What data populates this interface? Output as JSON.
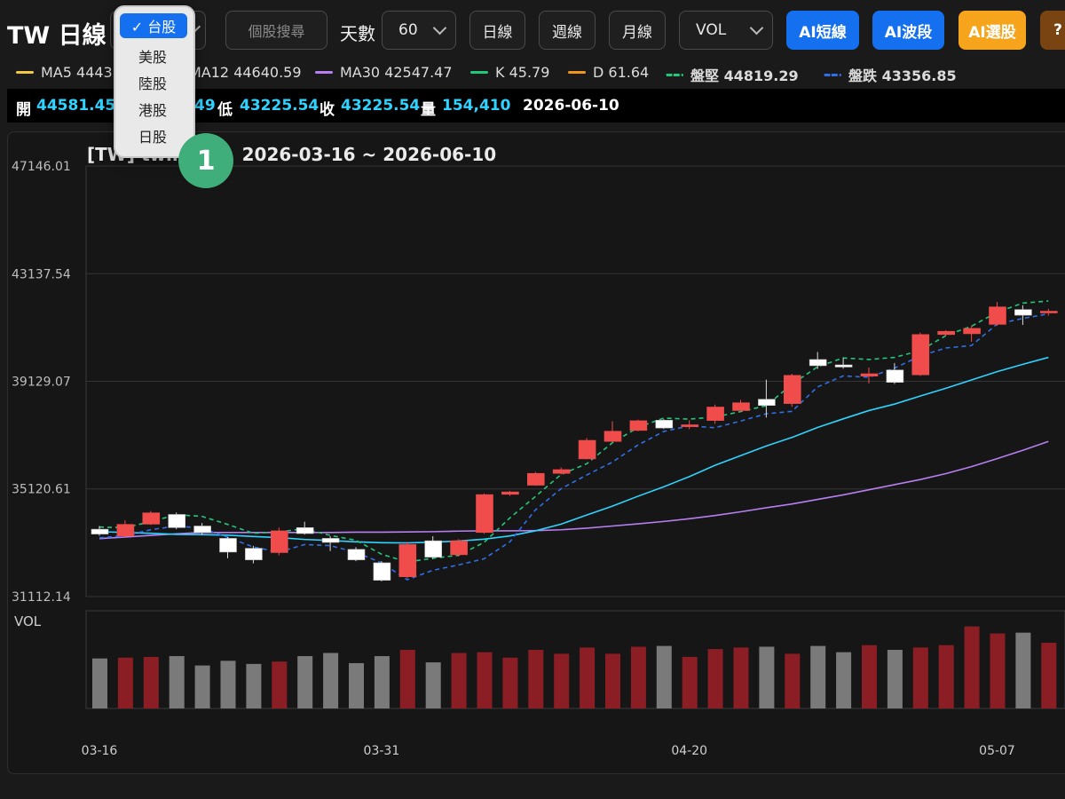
{
  "header": {
    "title": "TW 日線",
    "market_select": {
      "selected": "台股",
      "options": [
        "✓ 台股",
        "美股",
        "陸股",
        "港股",
        "日股"
      ]
    },
    "search_placeholder": "個股搜尋",
    "days_label": "天數",
    "days_value": "60",
    "daily_button": "日線",
    "weekly_button": "週線",
    "monthly_button": "月線",
    "indicator_select": "VOL",
    "ai_short_button": "AI短線",
    "ai_swing_button": "AI波段",
    "ai_pick_button": "AI選股",
    "help_button": "?"
  },
  "legend": [
    {
      "label": "MA5 44433",
      "color": "#f2c744",
      "dashed": false
    },
    {
      "label": "MA12 44640.59",
      "color": "#2fd3ff",
      "dashed": false
    },
    {
      "label": "MA30 42547.47",
      "color": "#b77ff0",
      "dashed": false
    },
    {
      "label": "K 45.79",
      "color": "#22c77a",
      "dashed": false
    },
    {
      "label": "D 61.64",
      "color": "#f0961e",
      "dashed": false
    },
    {
      "label": "盤堅 44819.29",
      "color": "#22c77a",
      "dashed": true
    },
    {
      "label": "盤跌 43356.85",
      "color": "#2f6fe8",
      "dashed": true
    }
  ],
  "ohlc": {
    "open_label": "開",
    "open_value": "44581.45",
    "high_value": "49",
    "low_label": "低",
    "low_value": "43225.54",
    "close_label": "收",
    "close_value": "43225.54",
    "volume_label": "量",
    "volume_value": "154,410",
    "date": "2026-06-10"
  },
  "chart": {
    "title": "[TW] twii 指數",
    "range": "2026-03-16 ~ 2026-06-10",
    "volume_label": "VOL",
    "colors": {
      "up": "#f04c4c",
      "down": "#ffffff",
      "vol_up": "#8b1e24",
      "vol_down": "#7a7a7a"
    }
  },
  "chart_data": {
    "type": "candlestick",
    "y_ticks": [
      "47146.01",
      "43137.54",
      "39129.07",
      "35120.61",
      "31112.14"
    ],
    "ylim": [
      31112.14,
      47146.01
    ],
    "x_ticks": [
      {
        "label": "03-16",
        "index": 0
      },
      {
        "label": "03-31",
        "index": 11
      },
      {
        "label": "04-20",
        "index": 23
      },
      {
        "label": "05-07",
        "index": 35
      }
    ],
    "candles": [
      {
        "o": 33620,
        "c": 33440,
        "h": 33740,
        "l": 33380,
        "up": false
      },
      {
        "o": 33370,
        "c": 33800,
        "h": 33950,
        "l": 33300,
        "up": true
      },
      {
        "o": 33810,
        "c": 34230,
        "h": 34300,
        "l": 33780,
        "up": true
      },
      {
        "o": 34170,
        "c": 33680,
        "h": 34240,
        "l": 33620,
        "up": false
      },
      {
        "o": 33740,
        "c": 33500,
        "h": 33850,
        "l": 33420,
        "up": false
      },
      {
        "o": 33280,
        "c": 32770,
        "h": 33330,
        "l": 32540,
        "up": false
      },
      {
        "o": 32910,
        "c": 32480,
        "h": 33000,
        "l": 32350,
        "up": false
      },
      {
        "o": 32750,
        "c": 33560,
        "h": 33680,
        "l": 32650,
        "up": true
      },
      {
        "o": 33680,
        "c": 33460,
        "h": 33900,
        "l": 33420,
        "up": false
      },
      {
        "o": 33280,
        "c": 33130,
        "h": 33360,
        "l": 32810,
        "up": false
      },
      {
        "o": 32870,
        "c": 32480,
        "h": 32950,
        "l": 32430,
        "up": false
      },
      {
        "o": 32370,
        "c": 31720,
        "h": 32430,
        "l": 31680,
        "up": false
      },
      {
        "o": 31850,
        "c": 33050,
        "h": 33150,
        "l": 31800,
        "up": true
      },
      {
        "o": 33190,
        "c": 32580,
        "h": 33360,
        "l": 32510,
        "up": false
      },
      {
        "o": 32670,
        "c": 33190,
        "h": 33250,
        "l": 32600,
        "up": true
      },
      {
        "o": 33500,
        "c": 34910,
        "h": 34950,
        "l": 33450,
        "up": true
      },
      {
        "o": 34920,
        "c": 35010,
        "h": 35050,
        "l": 34860,
        "up": true
      },
      {
        "o": 35260,
        "c": 35700,
        "h": 35750,
        "l": 35240,
        "up": true
      },
      {
        "o": 35700,
        "c": 35840,
        "h": 35920,
        "l": 35660,
        "up": true
      },
      {
        "o": 36240,
        "c": 36930,
        "h": 37020,
        "l": 36220,
        "up": true
      },
      {
        "o": 36890,
        "c": 37270,
        "h": 37640,
        "l": 36860,
        "up": true
      },
      {
        "o": 37300,
        "c": 37660,
        "h": 37700,
        "l": 37270,
        "up": true
      },
      {
        "o": 37680,
        "c": 37390,
        "h": 37720,
        "l": 37350,
        "up": false
      },
      {
        "o": 37440,
        "c": 37510,
        "h": 37680,
        "l": 37350,
        "up": true
      },
      {
        "o": 37670,
        "c": 38170,
        "h": 38260,
        "l": 37550,
        "up": true
      },
      {
        "o": 38040,
        "c": 38330,
        "h": 38440,
        "l": 37990,
        "up": true
      },
      {
        "o": 38460,
        "c": 38230,
        "h": 39190,
        "l": 37780,
        "up": false
      },
      {
        "o": 38300,
        "c": 39350,
        "h": 39410,
        "l": 38180,
        "up": true
      },
      {
        "o": 39710,
        "c": 39940,
        "h": 40220,
        "l": 39590,
        "up": false
      },
      {
        "o": 39740,
        "c": 39660,
        "h": 40000,
        "l": 39600,
        "up": false
      },
      {
        "o": 39410,
        "c": 39320,
        "h": 39640,
        "l": 39050,
        "up": true
      },
      {
        "o": 39550,
        "c": 39090,
        "h": 39810,
        "l": 39030,
        "up": false
      },
      {
        "o": 39370,
        "c": 40870,
        "h": 40940,
        "l": 39330,
        "up": true
      },
      {
        "o": 40870,
        "c": 40990,
        "h": 41030,
        "l": 40830,
        "up": true
      },
      {
        "o": 40900,
        "c": 41100,
        "h": 41200,
        "l": 40600,
        "up": true
      },
      {
        "o": 41250,
        "c": 41900,
        "h": 42080,
        "l": 41200,
        "up": true
      },
      {
        "o": 41800,
        "c": 41590,
        "h": 41960,
        "l": 41230,
        "up": false
      },
      {
        "o": 41740,
        "c": 41680,
        "h": 41830,
        "l": 41570,
        "up": true
      }
    ],
    "ma12": [
      33530,
      33500,
      33470,
      33430,
      33420,
      33400,
      33350,
      33310,
      33240,
      33200,
      33150,
      33120,
      33110,
      33140,
      33180,
      33250,
      33370,
      33560,
      33810,
      34150,
      34480,
      34850,
      35200,
      35580,
      36000,
      36360,
      36720,
      37040,
      37410,
      37730,
      38040,
      38280,
      38580,
      38870,
      39180,
      39490,
      39760,
      40020
    ],
    "ma30": [
      33270,
      33330,
      33390,
      33450,
      33500,
      33500,
      33500,
      33500,
      33500,
      33500,
      33510,
      33510,
      33520,
      33530,
      33550,
      33560,
      33560,
      33570,
      33600,
      33660,
      33740,
      33820,
      33910,
      34010,
      34130,
      34270,
      34420,
      34560,
      34730,
      34900,
      35090,
      35280,
      35470,
      35690,
      35950,
      36250,
      36560,
      36890
    ],
    "rise_line": [
      33700,
      33680,
      33900,
      34160,
      34100,
      33800,
      33470,
      33520,
      33640,
      33390,
      33210,
      32690,
      32400,
      32540,
      32650,
      33130,
      34040,
      34840,
      35660,
      36060,
      36840,
      37410,
      37760,
      37720,
      37800,
      38000,
      38220,
      39020,
      39670,
      40000,
      39940,
      40020,
      40270,
      40830,
      41180,
      41700,
      42040,
      42120
    ],
    "fall_line": [
      33300,
      33380,
      33600,
      33740,
      33660,
      33320,
      32960,
      32770,
      33050,
      33010,
      32760,
      32370,
      31740,
      32090,
      32290,
      32520,
      33150,
      34340,
      35130,
      35640,
      36120,
      36760,
      37260,
      37470,
      37400,
      37650,
      37920,
      38010,
      38920,
      39330,
      39280,
      39620,
      40070,
      40370,
      40460,
      41260,
      41470,
      41640
    ],
    "volume": [
      {
        "v": 0.64,
        "up": false
      },
      {
        "v": 0.65,
        "up": true
      },
      {
        "v": 0.66,
        "up": true
      },
      {
        "v": 0.67,
        "up": false
      },
      {
        "v": 0.55,
        "up": false
      },
      {
        "v": 0.61,
        "up": false
      },
      {
        "v": 0.57,
        "up": false
      },
      {
        "v": 0.6,
        "up": true
      },
      {
        "v": 0.67,
        "up": false
      },
      {
        "v": 0.71,
        "up": false
      },
      {
        "v": 0.58,
        "up": false
      },
      {
        "v": 0.67,
        "up": false
      },
      {
        "v": 0.75,
        "up": true
      },
      {
        "v": 0.59,
        "up": false
      },
      {
        "v": 0.71,
        "up": true
      },
      {
        "v": 0.72,
        "up": true
      },
      {
        "v": 0.65,
        "up": true
      },
      {
        "v": 0.75,
        "up": true
      },
      {
        "v": 0.7,
        "up": true
      },
      {
        "v": 0.78,
        "up": true
      },
      {
        "v": 0.7,
        "up": true
      },
      {
        "v": 0.79,
        "up": true
      },
      {
        "v": 0.8,
        "up": false
      },
      {
        "v": 0.66,
        "up": true
      },
      {
        "v": 0.76,
        "up": true
      },
      {
        "v": 0.78,
        "up": true
      },
      {
        "v": 0.79,
        "up": false
      },
      {
        "v": 0.7,
        "up": true
      },
      {
        "v": 0.8,
        "up": false
      },
      {
        "v": 0.72,
        "up": false
      },
      {
        "v": 0.81,
        "up": true
      },
      {
        "v": 0.75,
        "up": false
      },
      {
        "v": 0.78,
        "up": true
      },
      {
        "v": 0.81,
        "up": true
      },
      {
        "v": 1.05,
        "up": true
      },
      {
        "v": 0.96,
        "up": true
      },
      {
        "v": 0.97,
        "up": false
      },
      {
        "v": 0.84,
        "up": true
      }
    ]
  },
  "step_badge": "1"
}
